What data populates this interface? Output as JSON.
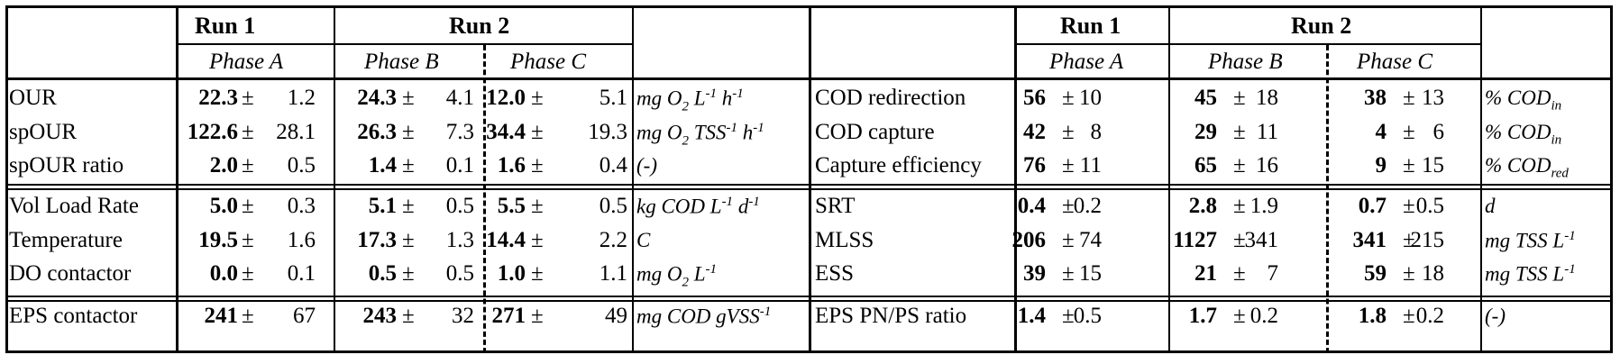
{
  "header": {
    "run1": "Run 1",
    "run2": "Run 2",
    "phase_a": "Phase A",
    "phase_b": "Phase B",
    "phase_c": "Phase C"
  },
  "pm": "±",
  "left_rows": [
    {
      "label": "OUR",
      "a_mean": "22.3",
      "a_sd": "1.2",
      "b_mean": "24.3",
      "b_sd": "4.1",
      "c_mean": "12.0",
      "c_sd": "5.1",
      "unit": [
        [
          "mg O",
          ""
        ],
        [
          "2",
          "sub"
        ],
        [
          " L",
          ""
        ],
        [
          "-1",
          "sup"
        ],
        [
          " h",
          ""
        ],
        [
          "-1",
          "sup"
        ]
      ]
    },
    {
      "label": "spOUR",
      "a_mean": "122.6",
      "a_sd": "28.1",
      "b_mean": "26.3",
      "b_sd": "7.3",
      "c_mean": "34.4",
      "c_sd": "19.3",
      "unit": [
        [
          "mg O",
          ""
        ],
        [
          "2",
          "sub"
        ],
        [
          " TSS",
          ""
        ],
        [
          "-1",
          "sup"
        ],
        [
          " h",
          ""
        ],
        [
          "-1",
          "sup"
        ]
      ]
    },
    {
      "label": "spOUR ratio",
      "a_mean": "2.0",
      "a_sd": "0.5",
      "b_mean": "1.4",
      "b_sd": "0.1",
      "c_mean": "1.6",
      "c_sd": "0.4",
      "unit": [
        [
          "(-)",
          ""
        ]
      ]
    },
    {
      "label": "Vol Load Rate",
      "a_mean": "5.0",
      "a_sd": "0.3",
      "b_mean": "5.1",
      "b_sd": "0.5",
      "c_mean": "5.5",
      "c_sd": "0.5",
      "unit": [
        [
          "kg COD L",
          ""
        ],
        [
          "-1",
          "sup"
        ],
        [
          " d",
          ""
        ],
        [
          "-1",
          "sup"
        ]
      ]
    },
    {
      "label": "Temperature",
      "a_mean": "19.5",
      "a_sd": "1.6",
      "b_mean": "17.3",
      "b_sd": "1.3",
      "c_mean": "14.4",
      "c_sd": "2.2",
      "unit": [
        [
          "C",
          ""
        ]
      ]
    },
    {
      "label": "DO contactor",
      "a_mean": "0.0",
      "a_sd": "0.1",
      "b_mean": "0.5",
      "b_sd": "0.5",
      "c_mean": "1.0",
      "c_sd": "1.1",
      "unit": [
        [
          "mg O",
          ""
        ],
        [
          "2",
          "sub"
        ],
        [
          " L",
          ""
        ],
        [
          "-1",
          "sup"
        ]
      ]
    },
    {
      "label": "EPS contactor",
      "a_mean": "241",
      "a_sd": "67",
      "b_mean": "243",
      "b_sd": "32",
      "c_mean": "271",
      "c_sd": "49",
      "unit": [
        [
          "mg COD gVSS",
          ""
        ],
        [
          "-1",
          "sup"
        ]
      ]
    }
  ],
  "right_rows": [
    {
      "label": "COD redirection",
      "a_mean": "56",
      "a_sd": "10",
      "b_mean": "45",
      "b_sd": "18",
      "c_mean": "38",
      "c_sd": "13",
      "unit": [
        [
          "% COD",
          ""
        ],
        [
          "in",
          "sub"
        ]
      ]
    },
    {
      "label": "COD capture",
      "a_mean": "42",
      "a_sd": "8",
      "b_mean": "29",
      "b_sd": "11",
      "c_mean": "4",
      "c_sd": "6",
      "unit": [
        [
          "% COD",
          ""
        ],
        [
          "in",
          "sub"
        ]
      ]
    },
    {
      "label": "Capture efficiency",
      "a_mean": "76",
      "a_sd": "11",
      "b_mean": "65",
      "b_sd": "16",
      "c_mean": "9",
      "c_sd": "15",
      "unit": [
        [
          "% COD",
          ""
        ],
        [
          "red",
          "sub"
        ]
      ]
    },
    {
      "label": "SRT",
      "a_mean": "0.4",
      "a_sd": "0.2",
      "b_mean": "2.8",
      "b_sd": "1.9",
      "c_mean": "0.7",
      "c_sd": "0.5",
      "unit": [
        [
          "d",
          ""
        ]
      ]
    },
    {
      "label": "MLSS",
      "a_mean": "206",
      "a_sd": "74",
      "b_mean": "1127",
      "b_sd": "341",
      "c_mean": "341",
      "c_sd": "215",
      "unit": [
        [
          "mg TSS L",
          ""
        ],
        [
          "-1",
          "sup"
        ]
      ]
    },
    {
      "label": "ESS",
      "a_mean": "39",
      "a_sd": "15",
      "b_mean": "21",
      "b_sd": "7",
      "c_mean": "59",
      "c_sd": "18",
      "unit": [
        [
          "mg TSS L",
          ""
        ],
        [
          "-1",
          "sup"
        ]
      ]
    },
    {
      "label": "EPS PN/PS ratio",
      "a_mean": "1.4",
      "a_sd": "0.5",
      "b_mean": "1.7",
      "b_sd": "0.2",
      "c_mean": "1.8",
      "c_sd": "0.2",
      "unit": [
        [
          "(-)",
          ""
        ]
      ]
    }
  ]
}
